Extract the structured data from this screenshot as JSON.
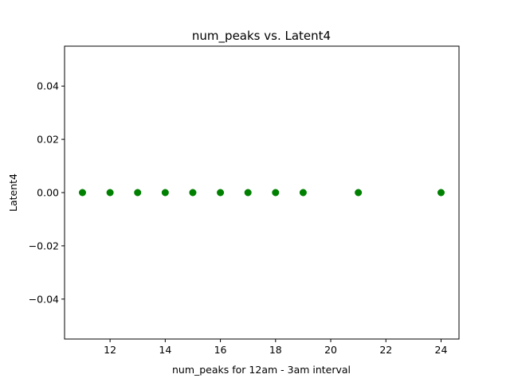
{
  "chart_data": {
    "type": "scatter",
    "title": "num_peaks vs. Latent4",
    "xlabel": "num_peaks for 12am - 3am interval",
    "ylabel": "Latent4",
    "xlim": [
      10.35,
      24.65
    ],
    "ylim": [
      -0.055,
      0.055
    ],
    "xticks": [
      12,
      14,
      16,
      18,
      20,
      22,
      24
    ],
    "yticks": [
      -0.04,
      -0.02,
      0.0,
      0.02,
      0.04
    ],
    "xtick_labels": [
      "12",
      "14",
      "16",
      "18",
      "20",
      "22",
      "24"
    ],
    "ytick_labels": [
      "−0.04",
      "−0.02",
      "0.00",
      "0.02",
      "0.04"
    ],
    "grid": false,
    "marker_color": "#008000",
    "series": [
      {
        "x": [
          11,
          12,
          13,
          14,
          15,
          16,
          17,
          18,
          19,
          21,
          24
        ],
        "y": [
          0,
          0,
          0,
          0,
          0,
          0,
          0,
          0,
          0,
          0,
          0
        ]
      }
    ]
  }
}
